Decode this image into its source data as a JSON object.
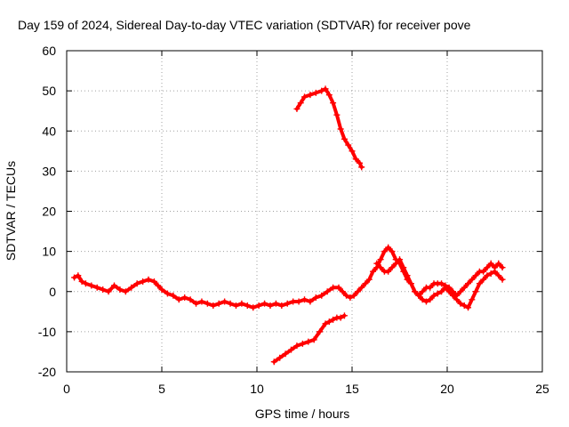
{
  "chart_data": {
    "type": "scatter",
    "title": "Day 159 of 2024, Sidereal Day-to-day VTEC variation (SDTVAR) for receiver pove",
    "xlabel": "GPS time / hours",
    "ylabel": "SDTVAR / TECUs",
    "xlim": [
      0,
      25
    ],
    "ylim": [
      -20,
      60
    ],
    "xticks": [
      0,
      5,
      10,
      15,
      20,
      25
    ],
    "yticks": [
      -20,
      -10,
      0,
      10,
      20,
      30,
      40,
      50,
      60
    ],
    "grid": true,
    "marker": "+",
    "color": "#ff0000",
    "series": [
      {
        "name": "main",
        "x": [
          0.4,
          0.6,
          0.8,
          1.0,
          1.3,
          1.6,
          1.9,
          2.2,
          2.5,
          2.8,
          3.1,
          3.4,
          3.7,
          4.0,
          4.3,
          4.6,
          4.8,
          5.0,
          5.3,
          5.6,
          5.9,
          6.2,
          6.5,
          6.8,
          7.1,
          7.4,
          7.7,
          8.0,
          8.3,
          8.6,
          8.9,
          9.2,
          9.5,
          9.8,
          10.1,
          10.4,
          10.7,
          11.0,
          11.3,
          11.6,
          11.9,
          12.2,
          12.5,
          12.8,
          13.1,
          13.4,
          13.7,
          14.0,
          14.3,
          14.5,
          14.7,
          14.9,
          15.1,
          15.3,
          15.5,
          15.7,
          15.9,
          16.1,
          16.3,
          16.5,
          16.7,
          16.9,
          17.1,
          17.3,
          17.5,
          17.7,
          17.9,
          18.1,
          18.3,
          18.5,
          18.7,
          18.9,
          19.1,
          19.3,
          19.5,
          19.7,
          19.9,
          20.1,
          20.3,
          20.5,
          20.7,
          20.9,
          21.1,
          21.3,
          21.5,
          21.7,
          21.9,
          22.1,
          22.3,
          22.5,
          22.7,
          22.9
        ],
        "y": [
          3.5,
          4,
          2.5,
          2,
          1.5,
          1,
          0.5,
          0,
          1.5,
          0.5,
          0,
          1,
          2,
          2.5,
          3,
          2.5,
          1.5,
          0.5,
          -0.5,
          -1,
          -2,
          -1.5,
          -2,
          -3,
          -2.5,
          -3,
          -3.5,
          -3,
          -2.5,
          -3,
          -3.5,
          -3,
          -3.5,
          -4,
          -3.5,
          -3,
          -3.5,
          -3,
          -3.5,
          -3,
          -2.5,
          -2.5,
          -2,
          -2.5,
          -1.5,
          -1,
          0,
          1,
          1,
          0,
          -1,
          -1.5,
          -1,
          0,
          1,
          2,
          3,
          5,
          6,
          8,
          10,
          11,
          10,
          8,
          7,
          5,
          3,
          2,
          0,
          -1,
          0,
          1,
          1,
          2,
          2,
          2,
          1.5,
          1,
          0,
          -1,
          0,
          1,
          2,
          3,
          4,
          5,
          5,
          6,
          7,
          6,
          7,
          6
        ]
      },
      {
        "name": "secondary",
        "x": [
          16.3,
          16.5,
          16.7,
          16.9,
          17.1,
          17.3,
          17.5,
          17.7,
          17.9,
          18.1,
          18.3,
          18.5,
          18.7,
          18.9,
          19.1,
          19.3,
          19.5,
          19.7,
          19.9,
          20.1,
          20.3,
          20.5,
          20.7,
          20.9,
          21.1,
          21.3,
          21.5,
          21.7,
          21.9,
          22.1,
          22.3,
          22.5,
          22.7,
          22.9
        ],
        "y": [
          7,
          6,
          5,
          5,
          6,
          7,
          8,
          6,
          4,
          2,
          0,
          -1,
          -2,
          -2.5,
          -2,
          -1,
          -0.5,
          0,
          1,
          0,
          -1,
          -2,
          -3,
          -3.5,
          -4,
          -2,
          0,
          2,
          3,
          4,
          4.5,
          5,
          4,
          3
        ]
      },
      {
        "name": "low-branch",
        "x": [
          10.9,
          11.2,
          11.5,
          11.8,
          12.1,
          12.4,
          12.7,
          13.0,
          13.3,
          13.6,
          13.8,
          14.0,
          14.2,
          14.4,
          14.6
        ],
        "y": [
          -17.5,
          -16.5,
          -15.5,
          -14.5,
          -13.5,
          -13,
          -12.5,
          -12,
          -10,
          -8,
          -7.5,
          -7,
          -6.5,
          -6.5,
          -6
        ]
      },
      {
        "name": "high-branch",
        "x": [
          12.1,
          12.3,
          12.5,
          12.8,
          13.1,
          13.4,
          13.6,
          13.8,
          14.0,
          14.2,
          14.4,
          14.6,
          14.8,
          15.0,
          15.2,
          15.4,
          15.5
        ],
        "y": [
          45.5,
          47,
          48.5,
          49,
          49.5,
          50,
          50.5,
          49,
          47,
          44,
          40.5,
          38,
          36.5,
          35,
          33,
          32,
          31
        ]
      }
    ]
  }
}
